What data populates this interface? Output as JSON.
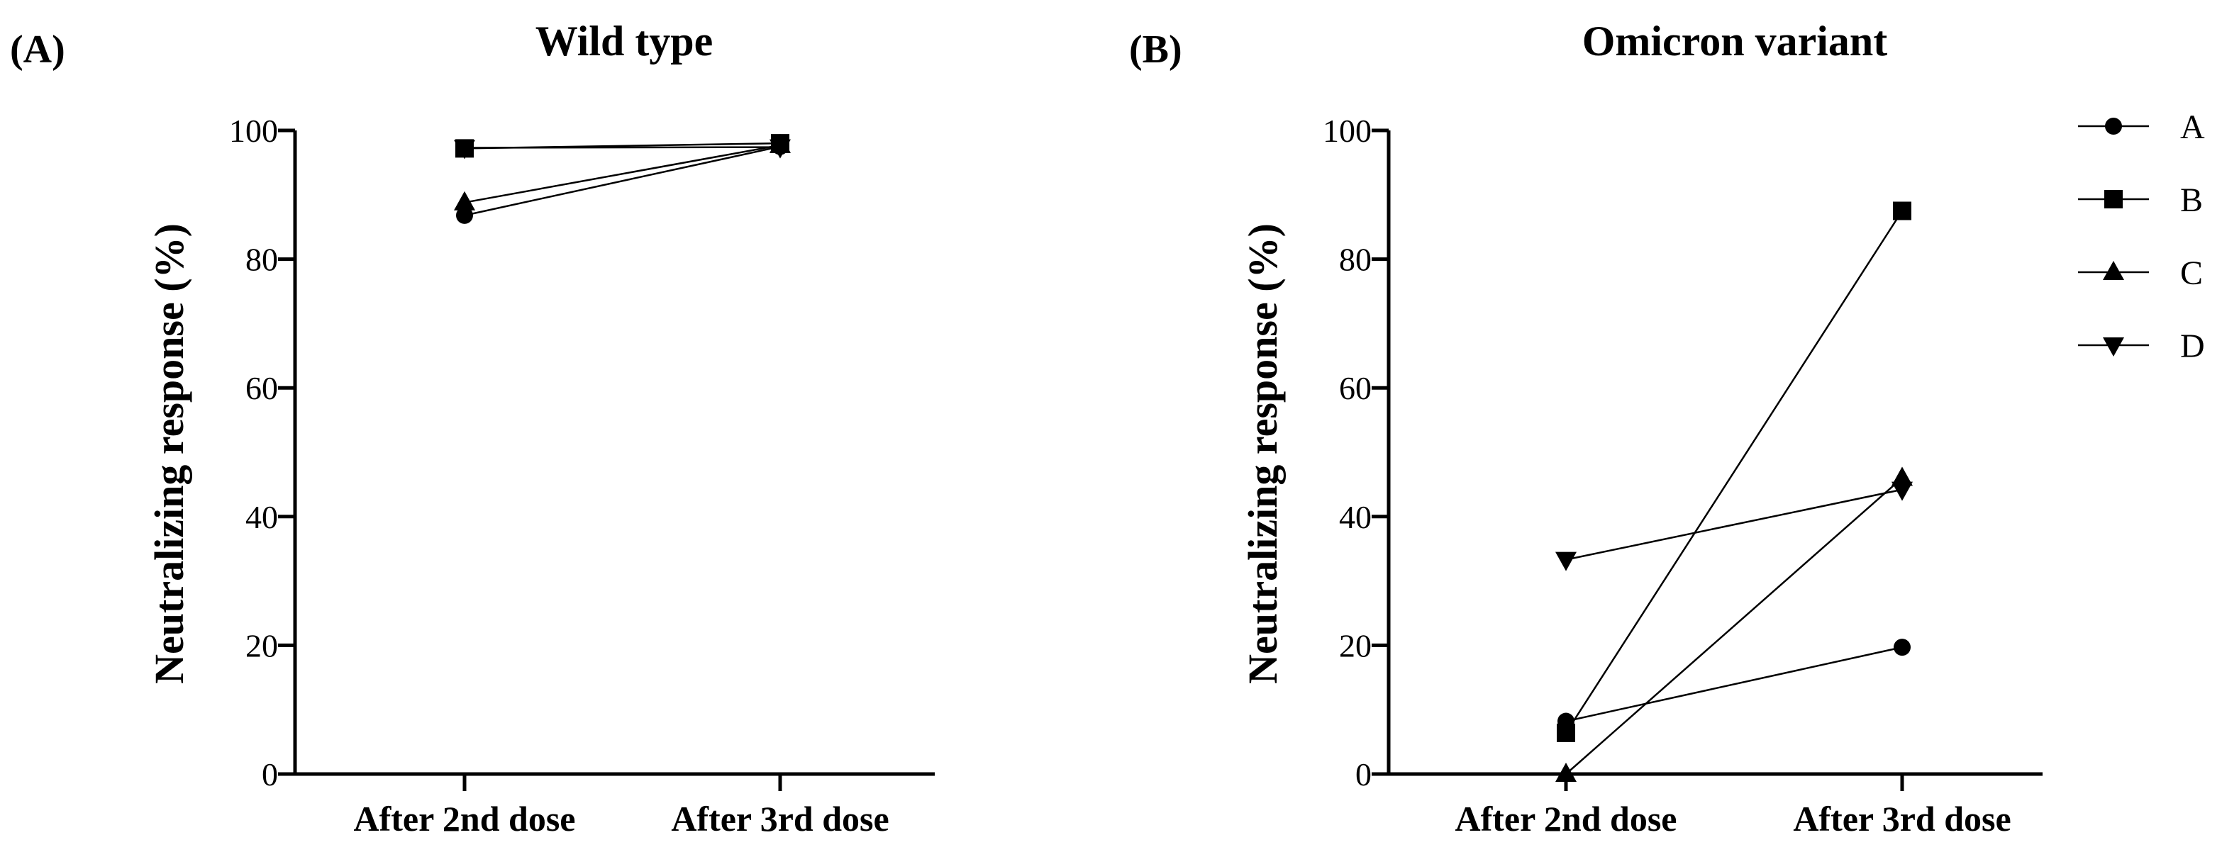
{
  "figure_labels": {
    "panel_a": "(A)",
    "panel_b": "(B)"
  },
  "chart_data": [
    {
      "type": "line",
      "title": "Wild type",
      "panel_label": "(A)",
      "xlabel": "",
      "ylabel": "Neutralizing response (%)",
      "categories": [
        "After 2nd dose",
        "After 3rd dose"
      ],
      "ylim": [
        0,
        100
      ],
      "yticks": [
        0,
        20,
        40,
        60,
        80,
        100
      ],
      "series": [
        {
          "name": "A",
          "marker": "circle",
          "values": [
            86.8,
            97.5
          ]
        },
        {
          "name": "B",
          "marker": "square",
          "values": [
            97.2,
            98.0
          ]
        },
        {
          "name": "C",
          "marker": "triangle-up",
          "values": [
            88.8,
            97.7
          ]
        },
        {
          "name": "D",
          "marker": "triangle-down",
          "values": [
            97.3,
            97.4
          ]
        }
      ]
    },
    {
      "type": "line",
      "title": "Omicron variant",
      "panel_label": "(B)",
      "xlabel": "",
      "ylabel": "Neutralizing response (%)",
      "categories": [
        "After 2nd dose",
        "After 3rd dose"
      ],
      "ylim": [
        0,
        100
      ],
      "yticks": [
        0,
        20,
        40,
        60,
        80,
        100
      ],
      "series": [
        {
          "name": "A",
          "marker": "circle",
          "values": [
            8.2,
            19.7
          ]
        },
        {
          "name": "B",
          "marker": "square",
          "values": [
            6.4,
            87.5
          ]
        },
        {
          "name": "C",
          "marker": "triangle-up",
          "values": [
            0.0,
            46.0
          ]
        },
        {
          "name": "D",
          "marker": "triangle-down",
          "values": [
            33.3,
            44.2
          ]
        }
      ],
      "legend": [
        "A",
        "B",
        "C",
        "D"
      ],
      "legend_position": "right"
    }
  ]
}
